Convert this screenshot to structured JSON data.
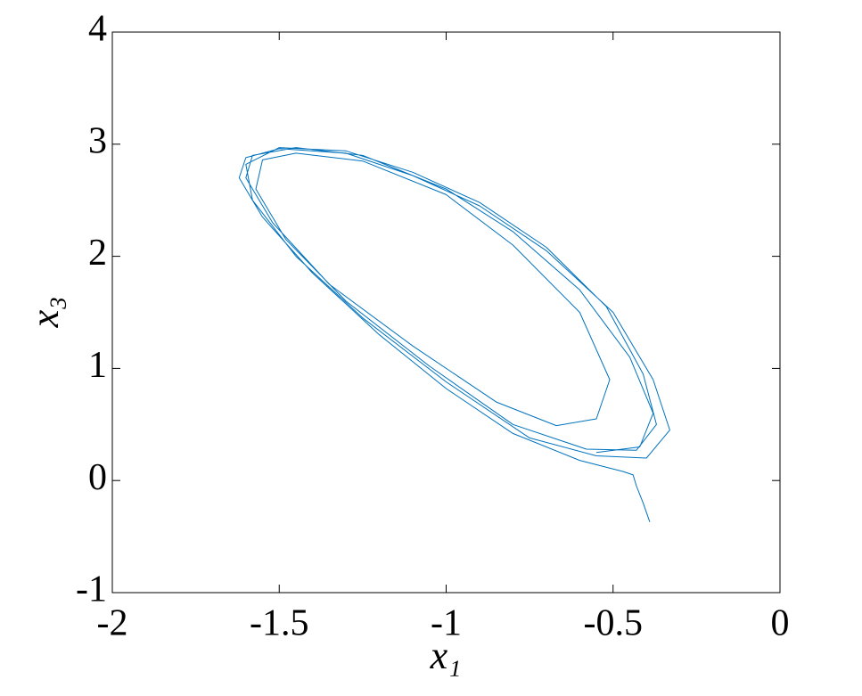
{
  "chart_data": {
    "type": "line",
    "xlabel": "x₁",
    "ylabel": "x₃",
    "xlim": [
      -2,
      0
    ],
    "xticks": [
      -2,
      -1.5,
      -1,
      -0.5,
      0
    ],
    "ylim": [
      -1,
      4
    ],
    "yticks": [
      -1,
      0,
      1,
      2,
      3,
      4
    ],
    "x": [
      -0.39,
      -0.41,
      -0.43,
      -0.44,
      -0.47,
      -0.6,
      -0.8,
      -1.0,
      -1.2,
      -1.4,
      -1.55,
      -1.62,
      -1.6,
      -1.5,
      -1.3,
      -1.1,
      -0.9,
      -0.7,
      -0.5,
      -0.38,
      -0.33,
      -0.4,
      -0.55,
      -0.75,
      -1.0,
      -1.25,
      -1.45,
      -1.58,
      -1.6,
      -1.5,
      -1.3,
      -1.1,
      -0.9,
      -0.7,
      -0.52,
      -0.41,
      -0.37,
      -0.43,
      -0.58,
      -0.8,
      -1.05,
      -1.3,
      -1.48,
      -1.57,
      -1.55,
      -1.45,
      -1.25,
      -1.0,
      -0.8,
      -0.6,
      -0.51,
      -0.55,
      -0.67,
      -0.85,
      -1.1,
      -1.35,
      -1.52,
      -1.6,
      -1.58,
      -1.45,
      -1.25,
      -1.0,
      -0.8,
      -0.6,
      -0.45,
      -0.38,
      -0.42,
      -0.55
    ],
    "series": [
      {
        "color": "#0072bd",
        "values": [
          -0.37,
          -0.2,
          -0.05,
          0.05,
          0.08,
          0.18,
          0.42,
          0.82,
          1.3,
          1.85,
          2.35,
          2.7,
          2.88,
          2.96,
          2.92,
          2.72,
          2.45,
          2.05,
          1.5,
          0.9,
          0.45,
          0.2,
          0.22,
          0.38,
          0.88,
          1.45,
          2.0,
          2.5,
          2.82,
          2.97,
          2.94,
          2.75,
          2.48,
          2.08,
          1.55,
          0.95,
          0.5,
          0.27,
          0.28,
          0.5,
          1.02,
          1.6,
          2.15,
          2.6,
          2.86,
          2.92,
          2.85,
          2.55,
          2.1,
          1.5,
          0.9,
          0.55,
          0.49,
          0.7,
          1.2,
          1.75,
          2.3,
          2.7,
          2.9,
          2.97,
          2.9,
          2.6,
          2.22,
          1.7,
          1.1,
          0.6,
          0.3,
          0.25
        ]
      }
    ]
  }
}
